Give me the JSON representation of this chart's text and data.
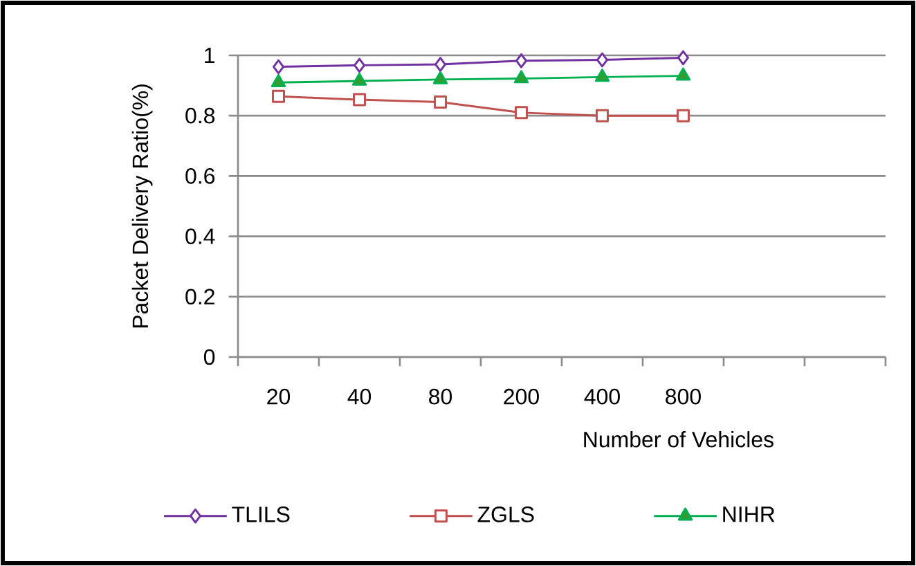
{
  "chart_data": {
    "type": "line",
    "xlabel": "Number of Vehicles",
    "ylabel": "Packet Delivery Ratio(%)",
    "categories": [
      "20",
      "40",
      "80",
      "200",
      "400",
      "800",
      null,
      null
    ],
    "series": [
      {
        "name": "TLILS",
        "color": "#7030a0",
        "marker": "diamond",
        "values": [
          0.962,
          0.967,
          0.97,
          0.982,
          0.985,
          0.992,
          null,
          null
        ]
      },
      {
        "name": "ZGLS",
        "color": "#c0504d",
        "marker": "square",
        "values": [
          0.864,
          0.853,
          0.845,
          0.81,
          0.8,
          0.8,
          null,
          null
        ]
      },
      {
        "name": "NIHR",
        "color": "#00b050",
        "marker": "triangle",
        "values": [
          0.91,
          0.915,
          0.92,
          0.923,
          0.928,
          0.932,
          null,
          null
        ]
      }
    ],
    "ylim": [
      0,
      1
    ],
    "yticks": [
      0,
      0.2,
      0.4,
      0.6,
      0.8,
      1
    ],
    "grid": "y",
    "legend": "bottom"
  }
}
